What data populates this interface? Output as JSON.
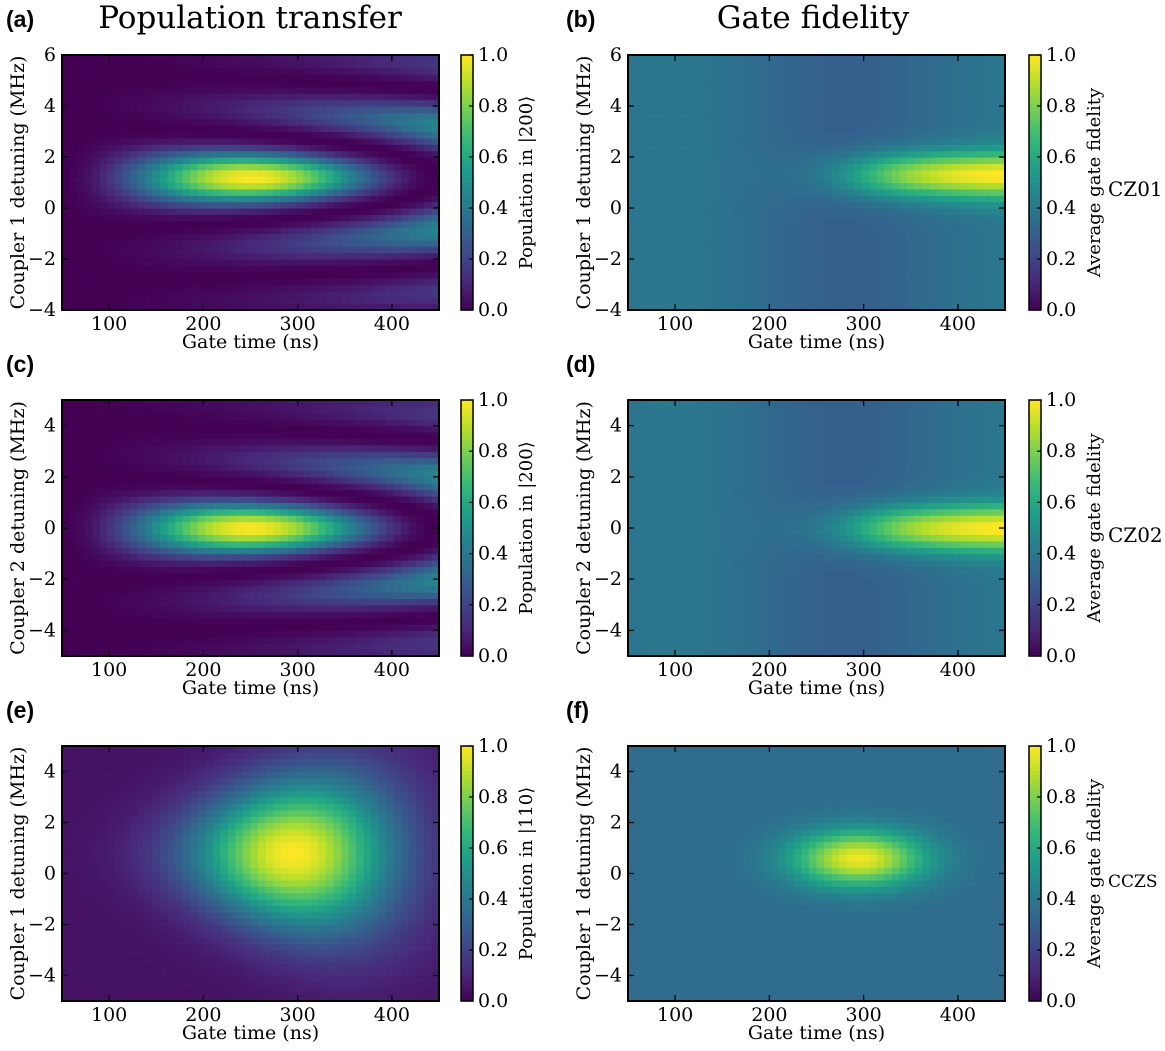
{
  "column_titles": [
    "Population transfer",
    "Gate fidelity"
  ],
  "row_labels": [
    "CZ01",
    "CZ02",
    "CCZS"
  ],
  "chart_data": [
    {
      "panel": "(a)",
      "type": "heatmap",
      "title": "",
      "xlabel": "Gate time (ns)",
      "ylabel": "Coupler 1 detuning (MHz)",
      "colorbar_label": "Population in |200⟩",
      "xlim": [
        50,
        450
      ],
      "ylim": [
        -4,
        6
      ],
      "xticks": [
        100,
        200,
        300,
        400
      ],
      "yticks": [
        -4,
        -2,
        0,
        2,
        4,
        6
      ],
      "cticks": [
        0.0,
        0.2,
        0.4,
        0.6,
        0.8,
        1.0
      ],
      "pattern": "chevron",
      "peak": {
        "x": 215,
        "y": 1.2,
        "value": 1.0
      },
      "colormap": "viridis"
    },
    {
      "panel": "(b)",
      "type": "heatmap",
      "title": "",
      "xlabel": "Gate time (ns)",
      "ylabel": "Coupler 1 detuning (MHz)",
      "colorbar_label": "Average gate fidelity",
      "xlim": [
        50,
        450
      ],
      "ylim": [
        -4,
        6
      ],
      "xticks": [
        100,
        200,
        300,
        400
      ],
      "yticks": [
        -4,
        -2,
        0,
        2,
        4,
        6
      ],
      "cticks": [
        0.0,
        0.2,
        0.4,
        0.6,
        0.8,
        1.0
      ],
      "pattern": "fidelity",
      "peak": {
        "x": 430,
        "y": 1.3,
        "value": 1.0
      },
      "colormap": "viridis"
    },
    {
      "panel": "(c)",
      "type": "heatmap",
      "title": "",
      "xlabel": "Gate time (ns)",
      "ylabel": "Coupler 2 detuning (MHz)",
      "colorbar_label": "Population in |200⟩",
      "xlim": [
        50,
        450
      ],
      "ylim": [
        -5,
        5
      ],
      "xticks": [
        100,
        200,
        300,
        400
      ],
      "yticks": [
        -4,
        -2,
        0,
        2,
        4
      ],
      "cticks": [
        0.0,
        0.2,
        0.4,
        0.6,
        0.8,
        1.0
      ],
      "pattern": "chevron",
      "peak": {
        "x": 210,
        "y": 0,
        "value": 1.0
      },
      "colormap": "viridis"
    },
    {
      "panel": "(d)",
      "type": "heatmap",
      "title": "",
      "xlabel": "Gate time (ns)",
      "ylabel": "Coupler 2 detuning (MHz)",
      "colorbar_label": "Average gate fidelity",
      "xlim": [
        50,
        450
      ],
      "ylim": [
        -5,
        5
      ],
      "xticks": [
        100,
        200,
        300,
        400
      ],
      "yticks": [
        -4,
        -2,
        0,
        2,
        4
      ],
      "cticks": [
        0.0,
        0.2,
        0.4,
        0.6,
        0.8,
        1.0
      ],
      "pattern": "fidelity",
      "peak": {
        "x": 390,
        "y": 0,
        "value": 1.0
      },
      "colormap": "viridis"
    },
    {
      "panel": "(e)",
      "type": "heatmap",
      "title": "",
      "xlabel": "Gate time (ns)",
      "ylabel": "Coupler 1 detuning (MHz)",
      "colorbar_label": "Population in |110⟩",
      "xlim": [
        50,
        450
      ],
      "ylim": [
        -5,
        5
      ],
      "xticks": [
        100,
        200,
        300,
        400
      ],
      "yticks": [
        -4,
        -2,
        0,
        2,
        4
      ],
      "cticks": [
        0.0,
        0.2,
        0.4,
        0.6,
        0.8,
        1.0
      ],
      "pattern": "broad",
      "peak": {
        "x": 295,
        "y": 0.8,
        "value": 1.0
      },
      "colormap": "viridis"
    },
    {
      "panel": "(f)",
      "type": "heatmap",
      "title": "",
      "xlabel": "Gate time (ns)",
      "ylabel": "Coupler 1 detuning (MHz)",
      "colorbar_label": "Average gate fidelity",
      "xlim": [
        50,
        450
      ],
      "ylim": [
        -5,
        5
      ],
      "xticks": [
        100,
        200,
        300,
        400
      ],
      "yticks": [
        -4,
        -2,
        0,
        2,
        4
      ],
      "cticks": [
        0.0,
        0.2,
        0.4,
        0.6,
        0.8,
        1.0
      ],
      "pattern": "fidelity-narrow",
      "peak": {
        "x": 295,
        "y": 0.6,
        "value": 1.0
      },
      "colormap": "viridis"
    }
  ]
}
